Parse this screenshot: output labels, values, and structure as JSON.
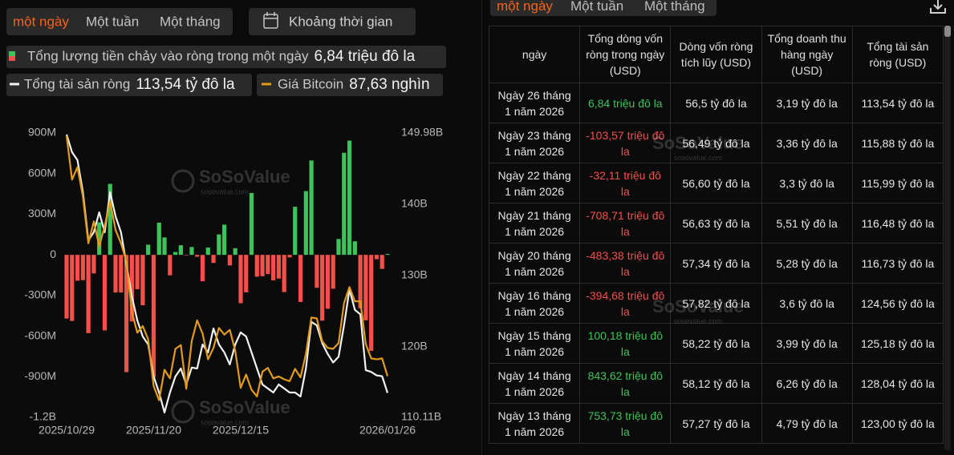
{
  "tabs": [
    "một ngày",
    "Một tuần",
    "Một tháng"
  ],
  "date_range_button": "Khoảng thời gian",
  "watermark": {
    "brand": "SoSoValue",
    "site": "sosovalue.com"
  },
  "chart_data": {
    "type": "combo",
    "categories": [
      "2025/10/29",
      null,
      null,
      null,
      null,
      null,
      null,
      null,
      null,
      null,
      null,
      null,
      null,
      null,
      null,
      null,
      "2025/11/20",
      null,
      null,
      null,
      null,
      null,
      null,
      null,
      null,
      null,
      null,
      null,
      null,
      null,
      null,
      null,
      "2025/12/15",
      null,
      null,
      null,
      null,
      null,
      null,
      null,
      null,
      null,
      null,
      null,
      null,
      null,
      null,
      null,
      null,
      null,
      null,
      null,
      null,
      null,
      null,
      null,
      null,
      null,
      null,
      "2026/01/26"
    ],
    "series": [
      {
        "name": "Tổng lượng tiền chảy vào ròng trong một ngày",
        "legend_value": "6,84 triệu đô la",
        "type": "bar",
        "axis": "y",
        "color": "#3ec35a",
        "negative_color": "#f2504b",
        "values": [
          -470,
          -488,
          -191,
          -187,
          -578,
          -137,
          240,
          -558,
          524,
          -278,
          -278,
          -866,
          -492,
          -254,
          -372,
          75,
          -903,
          238,
          129,
          -151,
          21,
          71,
          -4,
          58,
          -14,
          -195,
          54,
          -60,
          151,
          223,
          -78,
          49,
          -357,
          -277,
          457,
          -161,
          -158,
          -142,
          -188,
          -175,
          -275,
          -19,
          355,
          -348,
          471,
          697,
          -243,
          -486,
          -398,
          -250,
          117,
          753.73,
          843.62,
          100.18,
          -394.68,
          -483.38,
          -708.71,
          -32.11,
          -103.57,
          6.84
        ]
      },
      {
        "name": "Tổng tài sản ròng",
        "legend_value": "113,54 tỷ đô la",
        "type": "line",
        "axis": "y2",
        "color": "#f2f2f2",
        "values": [
          149.76,
          147.29,
          146.17,
          141.67,
          134.93,
          136.06,
          138.86,
          136.06,
          141.67,
          138.3,
          136.06,
          131.56,
          127.07,
          123.7,
          121.45,
          120.33,
          115.84,
          113.59,
          110.79,
          113.59,
          115.84,
          116.96,
          114.72,
          117.09,
          116.96,
          120.33,
          119.21,
          122.58,
          120.33,
          119.21,
          117.52,
          120.33,
          122.02,
          121.45,
          119.21,
          116.96,
          114.72,
          114.16,
          113.59,
          114.72,
          114.16,
          113.59,
          113.59,
          113.03,
          117.0,
          123.5,
          123.0,
          120.5,
          119.0,
          117.8,
          118.6,
          123.0,
          128.04,
          125.18,
          124.56,
          116.73,
          116.48,
          115.99,
          115.88,
          113.54
        ]
      },
      {
        "name": "Giá Bitcoin",
        "legend_value": "87,63 nghìn",
        "type": "line",
        "axis": "y3",
        "color": "#e39b1c",
        "values": [
          112.9,
          108.3,
          109.6,
          106.5,
          101.6,
          103.9,
          101.3,
          103.4,
          106.0,
          103.0,
          101.6,
          99.7,
          94.4,
          92.2,
          92.9,
          91.5,
          86.6,
          85.1,
          88.3,
          87.4,
          90.5,
          90.9,
          86.3,
          91.3,
          93.5,
          92.1,
          89.4,
          90.6,
          92.7,
          92.0,
          92.5,
          90.3,
          86.4,
          87.8,
          86.2,
          85.5,
          88.1,
          88.5,
          87.4,
          87.6,
          87.3,
          87.1,
          88.4,
          87.5,
          90.0,
          93.8,
          93.7,
          91.3,
          90.6,
          90.5,
          91.1,
          95.3,
          97.0,
          95.5,
          95.5,
          91.0,
          89.5,
          89.4,
          89.5,
          87.63
        ]
      }
    ],
    "ylim": [
      -1200,
      900
    ],
    "yticks": [
      {
        "value": 900,
        "label": "900M"
      },
      {
        "value": 600,
        "label": "600M"
      },
      {
        "value": 300,
        "label": "300M"
      },
      0,
      {
        "value": -300,
        "label": "-300M"
      },
      {
        "value": -600,
        "label": "-600M"
      },
      {
        "value": -900,
        "label": "-900M"
      },
      {
        "value": -1200,
        "label": "-1.2B"
      }
    ],
    "y2lim": [
      110.11,
      149.98
    ],
    "y2ticks": [
      {
        "value": 149.98,
        "label": "149.98B"
      },
      {
        "value": 140,
        "label": "140B"
      },
      {
        "value": 130,
        "label": "130B"
      },
      {
        "value": 120,
        "label": "120B"
      },
      {
        "value": 110.11,
        "label": "110.11B"
      }
    ],
    "y3lim": [
      83.3,
      113.2
    ]
  },
  "table": {
    "headers": [
      "ngày",
      "Tổng dòng vốn ròng trong ngày (USD)",
      "Dòng vốn ròng tích lũy (USD)",
      "Tổng doanh thu hàng ngày (USD)",
      "Tổng tài sản ròng (USD)"
    ],
    "rows": [
      [
        "Ngày 26 tháng 1 năm 2026",
        "6,84 triệu đô la",
        "56,5 tỷ đô la",
        "3,19 tỷ đô la",
        "113,54 tỷ đô la"
      ],
      [
        "Ngày 23 tháng 1 năm 2026",
        "-103,57 triệu đô la",
        "56,49 tỷ đô la",
        "3,36 tỷ đô la",
        "115,88 tỷ đô la"
      ],
      [
        "Ngày 22 tháng 1 năm 2026",
        "-32,11 triệu đô la",
        "56,60 tỷ đô la",
        "3,3 tỷ đô la",
        "115,99 tỷ đô la"
      ],
      [
        "Ngày 21 tháng 1 năm 2026",
        "-708,71 triệu đô la",
        "56,63 tỷ đô la",
        "5,51 tỷ đô la",
        "116,48 tỷ đô la"
      ],
      [
        "Ngày 20 tháng 1 năm 2026",
        "-483,38 triệu đô la",
        "57,34 tỷ đô la",
        "5,28 tỷ đô la",
        "116,73 tỷ đô la"
      ],
      [
        "Ngày 16 tháng 1 năm 2026",
        "-394,68 triệu đô la",
        "57,82 tỷ đô la",
        "3,6 tỷ đô la",
        "124,56 tỷ đô la"
      ],
      [
        "Ngày 15 tháng 1 năm 2026",
        "100,18 triệu đô la",
        "58,22 tỷ đô la",
        "3,99 tỷ đô la",
        "125,18 tỷ đô la"
      ],
      [
        "Ngày 14 tháng 1 năm 2026",
        "843,62 triệu đô la",
        "58,12 tỷ đô la",
        "6,26 tỷ đô la",
        "128,04 tỷ đô la"
      ],
      [
        "Ngày 13 tháng 1 năm 2026",
        "753,73 triệu đô la",
        "57,27 tỷ đô la",
        "4,79 tỷ đô la",
        "123,00 tỷ đô la"
      ]
    ]
  }
}
